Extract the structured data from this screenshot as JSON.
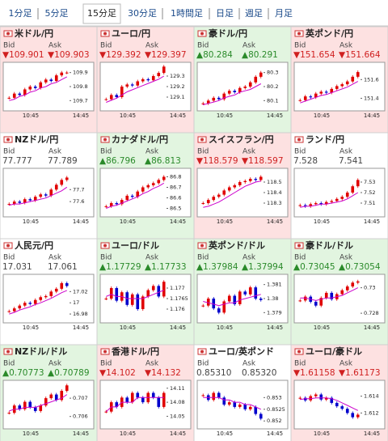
{
  "tabs": [
    "1分足",
    "5分足",
    "15分足",
    "30分足",
    "1時間足",
    "日足",
    "週足",
    "月足"
  ],
  "selected_tab": 2,
  "bid_label": "Bid",
  "ask_label": "Ask",
  "xticks": [
    "10:45",
    "14:45"
  ],
  "colors": {
    "up": "#e00000",
    "down": "#0000cc",
    "ma": "#cc00cc",
    "bg_up": "#e2f5e0",
    "bg_down": "#fde1e1",
    "bg_flat": "#ffffff",
    "text_up": "#2a8a2a",
    "text_down": "#d02020",
    "text_flat": "#444444"
  },
  "cells": [
    {
      "name": "米ドル/円",
      "direction": "down",
      "bid": "▼109.901",
      "ask": "▼109.903",
      "chart": {
        "ylim": [
          109.65,
          109.95
        ],
        "yticks": [
          109.9,
          109.8,
          109.7
        ],
        "closes": [
          109.72,
          109.75,
          109.74,
          109.78,
          109.8,
          109.79,
          109.83,
          109.85,
          109.84,
          109.88,
          109.9,
          109.9
        ],
        "ma": [
          109.7,
          109.71,
          109.73,
          109.74,
          109.76,
          109.77,
          109.79,
          109.8,
          109.82,
          109.83,
          109.85,
          109.87
        ]
      }
    },
    {
      "name": "ユーロ/円",
      "direction": "down",
      "bid": "▼129.392",
      "ask": "▼129.397",
      "chart": {
        "ylim": [
          129.0,
          129.4
        ],
        "yticks": [
          129.3,
          129.2,
          129.1
        ],
        "closes": [
          129.08,
          129.12,
          129.1,
          129.2,
          129.22,
          129.21,
          129.25,
          129.27,
          129.26,
          129.3,
          129.33,
          129.39
        ],
        "ma": [
          129.05,
          129.07,
          129.09,
          129.12,
          129.15,
          129.17,
          129.19,
          129.21,
          129.23,
          129.25,
          129.27,
          129.3
        ]
      }
    },
    {
      "name": "豪ドル/円",
      "direction": "up",
      "bid": "▲80.284",
      "ask": "▲80.291",
      "chart": {
        "ylim": [
          80.05,
          80.35
        ],
        "yticks": [
          80.3,
          80.2,
          80.1
        ],
        "closes": [
          80.08,
          80.1,
          80.12,
          80.11,
          80.15,
          80.17,
          80.16,
          80.19,
          80.2,
          80.23,
          80.27,
          80.3
        ],
        "ma": [
          80.07,
          80.08,
          80.09,
          80.1,
          80.12,
          80.13,
          80.14,
          80.16,
          80.17,
          80.18,
          80.2,
          80.22
        ]
      }
    },
    {
      "name": "英ポンド/円",
      "direction": "down",
      "bid": "▼151.654",
      "ask": "▼151.664",
      "chart": {
        "ylim": [
          151.3,
          151.75
        ],
        "yticks": [
          151.6,
          151.4
        ],
        "closes": [
          151.38,
          151.42,
          151.41,
          151.45,
          151.47,
          151.46,
          151.5,
          151.53,
          151.55,
          151.58,
          151.63,
          151.68
        ],
        "ma": [
          151.35,
          151.37,
          151.39,
          151.41,
          151.43,
          151.44,
          151.46,
          151.48,
          151.5,
          151.52,
          151.55,
          151.58
        ]
      }
    },
    {
      "name": "NZドル/円",
      "direction": "flat",
      "bid": "77.777",
      "ask": "77.789",
      "chart": {
        "ylim": [
          77.5,
          77.85
        ],
        "yticks": [
          77.7,
          77.6
        ],
        "closes": [
          77.58,
          77.6,
          77.59,
          77.62,
          77.61,
          77.64,
          77.66,
          77.65,
          77.7,
          77.74,
          77.78,
          77.8
        ],
        "ma": [
          77.57,
          77.58,
          77.58,
          77.59,
          77.6,
          77.61,
          77.62,
          77.63,
          77.65,
          77.67,
          77.69,
          77.72
        ]
      }
    },
    {
      "name": "カナダドル/円",
      "direction": "up",
      "bid": "▲86.796",
      "ask": "▲86.813",
      "chart": {
        "ylim": [
          86.45,
          86.85
        ],
        "yticks": [
          86.8,
          86.7,
          86.6,
          86.5
        ],
        "closes": [
          86.52,
          86.55,
          86.54,
          86.58,
          86.62,
          86.61,
          86.66,
          86.7,
          86.72,
          86.74,
          86.77,
          86.8
        ],
        "ma": [
          86.5,
          86.52,
          86.53,
          86.55,
          86.57,
          86.59,
          86.61,
          86.64,
          86.66,
          86.69,
          86.71,
          86.74
        ]
      }
    },
    {
      "name": "スイスフラン/円",
      "direction": "down",
      "bid": "▼118.579",
      "ask": "▼118.597",
      "chart": {
        "ylim": [
          118.2,
          118.6
        ],
        "yticks": [
          118.5,
          118.4,
          118.3
        ],
        "closes": [
          118.3,
          118.33,
          118.36,
          118.38,
          118.42,
          118.45,
          118.47,
          118.5,
          118.51,
          118.53,
          118.52,
          118.55
        ],
        "ma": [
          118.26,
          118.27,
          118.29,
          118.31,
          118.34,
          118.37,
          118.4,
          118.43,
          118.46,
          118.48,
          118.5,
          118.51
        ]
      }
    },
    {
      "name": "ランド/円",
      "direction": "flat",
      "bid": "7.528",
      "ask": "7.541",
      "chart": {
        "ylim": [
          7.5,
          7.54
        ],
        "yticks": [
          7.53,
          7.52,
          7.51
        ],
        "closes": [
          7.508,
          7.507,
          7.509,
          7.51,
          7.509,
          7.511,
          7.512,
          7.514,
          7.516,
          7.52,
          7.526,
          7.532
        ],
        "ma": [
          7.506,
          7.507,
          7.507,
          7.508,
          7.509,
          7.509,
          7.51,
          7.511,
          7.512,
          7.514,
          7.517,
          7.52
        ]
      }
    },
    {
      "name": "人民元/円",
      "direction": "flat",
      "bid": "17.031",
      "ask": "17.061",
      "chart": {
        "ylim": [
          16.97,
          17.045
        ],
        "yticks": [
          17.02,
          17,
          16.98
        ],
        "closes": [
          16.985,
          16.99,
          16.995,
          17.0,
          16.998,
          17.005,
          17.01,
          17.012,
          17.02,
          17.025,
          17.035,
          17.03
        ],
        "ma": [
          16.98,
          16.983,
          16.987,
          16.99,
          16.993,
          16.997,
          17.0,
          17.004,
          17.008,
          17.013,
          17.018,
          17.022
        ]
      }
    },
    {
      "name": "ユーロ/ドル",
      "direction": "up",
      "bid": "▲1.17729",
      "ask": "▲1.17733",
      "chart": {
        "ylim": [
          1.1755,
          1.1775
        ],
        "yticks": [
          1.177,
          1.1765,
          1.176
        ],
        "closes": [
          1.1765,
          1.177,
          1.1764,
          1.1768,
          1.1762,
          1.1767,
          1.176,
          1.1766,
          1.1769,
          1.1771,
          1.1766,
          1.1773
        ],
        "ma": [
          1.1766,
          1.1767,
          1.1766,
          1.1766,
          1.1765,
          1.1765,
          1.1765,
          1.1765,
          1.1766,
          1.1767,
          1.1768,
          1.1769
        ]
      }
    },
    {
      "name": "英ポンド/ドル",
      "direction": "up",
      "bid": "▲1.37984",
      "ask": "▲1.37994",
      "chart": {
        "ylim": [
          1.3785,
          1.3815
        ],
        "yticks": [
          1.381,
          1.38,
          1.379
        ],
        "closes": [
          1.3795,
          1.38,
          1.3793,
          1.379,
          1.3798,
          1.3802,
          1.3796,
          1.3805,
          1.3803,
          1.3808,
          1.38,
          1.3799
        ],
        "ma": [
          1.3798,
          1.3797,
          1.3796,
          1.3795,
          1.3796,
          1.3797,
          1.3797,
          1.3799,
          1.38,
          1.3801,
          1.3802,
          1.3803
        ]
      }
    },
    {
      "name": "豪ドル/ドル",
      "direction": "up",
      "bid": "▲0.73045",
      "ask": "▲0.73054",
      "chart": {
        "ylim": [
          0.7275,
          0.7308
        ],
        "yticks": [
          0.73,
          0.728
        ],
        "closes": [
          0.729,
          0.7293,
          0.7289,
          0.7286,
          0.7292,
          0.7296,
          0.7291,
          0.7295,
          0.7298,
          0.7301,
          0.7304,
          0.7305
        ],
        "ma": [
          0.7292,
          0.7292,
          0.7291,
          0.729,
          0.7291,
          0.7292,
          0.7292,
          0.7293,
          0.7294,
          0.7296,
          0.7298,
          0.73
        ]
      }
    },
    {
      "name": "NZドル/ドル",
      "direction": "up",
      "bid": "▲0.70773",
      "ask": "▲0.70789",
      "chart": {
        "ylim": [
          0.7055,
          0.7078
        ],
        "yticks": [
          0.707,
          0.706
        ],
        "closes": [
          0.7062,
          0.7066,
          0.7064,
          0.7068,
          0.7065,
          0.7063,
          0.7066,
          0.707,
          0.7072,
          0.7069,
          0.7074,
          0.7077
        ],
        "ma": [
          0.7063,
          0.7064,
          0.7064,
          0.7065,
          0.7065,
          0.7065,
          0.7066,
          0.7067,
          0.7068,
          0.7069,
          0.707,
          0.7072
        ]
      }
    },
    {
      "name": "香港ドル/円",
      "direction": "down",
      "bid": "▼14.102",
      "ask": "▼14.132",
      "chart": {
        "ylim": [
          14.03,
          14.12
        ],
        "yticks": [
          14.11,
          14.08,
          14.05
        ],
        "closes": [
          14.06,
          14.08,
          14.07,
          14.09,
          14.08,
          14.1,
          14.09,
          14.08,
          14.1,
          14.09,
          14.07,
          14.1
        ],
        "ma": [
          14.06,
          14.07,
          14.07,
          14.08,
          14.08,
          14.08,
          14.09,
          14.09,
          14.09,
          14.09,
          14.09,
          14.09
        ]
      }
    },
    {
      "name": "ユーロ/英ポンド",
      "direction": "flat",
      "bid": "0.85310",
      "ask": "0.85320",
      "chart": {
        "ylim": [
          0.8518,
          0.8536
        ],
        "yticks": [
          0.853,
          0.8525,
          0.852
        ],
        "closes": [
          0.8531,
          0.8529,
          0.8532,
          0.853,
          0.8527,
          0.8528,
          0.8526,
          0.8527,
          0.8525,
          0.8526,
          0.8523,
          0.8521
        ],
        "ma": [
          0.853,
          0.853,
          0.853,
          0.853,
          0.8529,
          0.8529,
          0.8528,
          0.8528,
          0.8527,
          0.8527,
          0.8526,
          0.8525
        ]
      }
    },
    {
      "name": "ユーロ/豪ドル",
      "direction": "down",
      "bid": "▼1.61158",
      "ask": "▼1.61173",
      "chart": {
        "ylim": [
          1.6105,
          1.6155
        ],
        "yticks": [
          1.614,
          1.612
        ],
        "closes": [
          1.6138,
          1.6135,
          1.614,
          1.6142,
          1.6136,
          1.6138,
          1.6132,
          1.6128,
          1.6125,
          1.612,
          1.6115,
          1.6118
        ],
        "ma": [
          1.6136,
          1.6137,
          1.6137,
          1.6138,
          1.6138,
          1.6138,
          1.6137,
          1.6135,
          1.6132,
          1.6129,
          1.6126,
          1.6123
        ]
      }
    }
  ]
}
